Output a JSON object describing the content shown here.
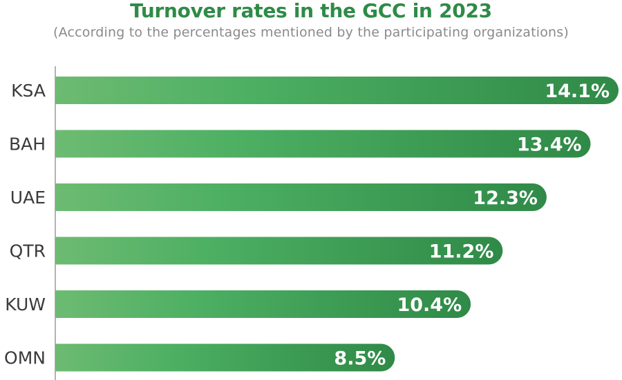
{
  "title": "Turnover rates in the GCC in 2023",
  "subtitle": "(According to the percentages mentioned by the participating organizations)",
  "colors": {
    "title": "#2e8b47",
    "bar_start": "#6dbb72",
    "bar_mid": "#4caf62",
    "bar_end": "#2f8a47",
    "axis": "#9a9a9a",
    "category_text": "#3a3a3a",
    "value_text": "#ffffff"
  },
  "chart_data": {
    "type": "bar",
    "orientation": "horizontal",
    "title": "Turnover rates in the GCC in 2023",
    "subtitle": "(According to the percentages mentioned by the participating organizations)",
    "categories": [
      "KSA",
      "BAH",
      "UAE",
      "QTR",
      "KUW",
      "OMN"
    ],
    "values": [
      14.1,
      13.4,
      12.3,
      11.2,
      10.4,
      8.5
    ],
    "value_labels": [
      "14.1%",
      "13.4%",
      "12.3%",
      "11.2%",
      "10.4%",
      "8.5%"
    ],
    "unit": "%",
    "xlabel": "",
    "ylabel": "",
    "grid": false,
    "legend": "none"
  }
}
